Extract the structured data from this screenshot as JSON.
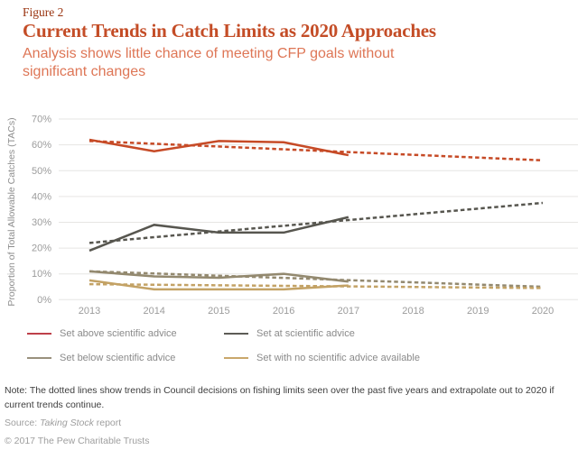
{
  "figure": {
    "label": "Figure 2",
    "title": "Current Trends in Catch Limits as 2020 Approaches",
    "subtitle": "Analysis shows little chance of meeting CFP goals without significant changes"
  },
  "chart_data": {
    "type": "line",
    "title": "Current Trends in Catch Limits as 2020 Approaches",
    "xlabel": "",
    "ylabel": "Proportion of Total Allowable Catches (TACs)",
    "x_ticks": [
      2013,
      2014,
      2015,
      2016,
      2017,
      2018,
      2019,
      2020
    ],
    "y_ticks": [
      "0%",
      "10%",
      "20%",
      "30%",
      "40%",
      "50%",
      "60%",
      "70%"
    ],
    "ylim": [
      0,
      70
    ],
    "grid": true,
    "legend_position": "bottom",
    "series": [
      {
        "name": "Set above scientific advice",
        "style": "solid",
        "color": "#C64A26",
        "x": [
          2013,
          2014,
          2015,
          2016,
          2017
        ],
        "values": [
          62,
          57.5,
          61.5,
          61,
          56
        ]
      },
      {
        "name": "Set above scientific advice (trend)",
        "style": "dashed",
        "color": "#C64A26",
        "x": [
          2013,
          2020
        ],
        "values": [
          61.5,
          54
        ]
      },
      {
        "name": "Set at scientific advice",
        "style": "solid",
        "color": "#57564F",
        "x": [
          2013,
          2014,
          2015,
          2016,
          2017
        ],
        "values": [
          19,
          29,
          26,
          26,
          32
        ]
      },
      {
        "name": "Set at scientific advice (trend)",
        "style": "dashed",
        "color": "#57564F",
        "x": [
          2013,
          2020
        ],
        "values": [
          22,
          37.5
        ]
      },
      {
        "name": "Set below scientific advice",
        "style": "solid",
        "color": "#93896F",
        "x": [
          2013,
          2014,
          2015,
          2016,
          2017
        ],
        "values": [
          11,
          9,
          8.5,
          10,
          7
        ]
      },
      {
        "name": "Set below scientific advice (trend)",
        "style": "dashed",
        "color": "#93896F",
        "x": [
          2013,
          2020
        ],
        "values": [
          11,
          5
        ]
      },
      {
        "name": "Set with no scientific advice available",
        "style": "solid",
        "color": "#C3A265",
        "x": [
          2013,
          2014,
          2015,
          2016,
          2017
        ],
        "values": [
          7.5,
          4,
          4,
          4,
          5.5
        ]
      },
      {
        "name": "Set with no scientific advice available (trend)",
        "style": "dashed",
        "color": "#C3A265",
        "x": [
          2013,
          2020
        ],
        "values": [
          6,
          4.5
        ]
      }
    ],
    "legend": [
      {
        "label": "Set above scientific advice",
        "color": "#BE404A"
      },
      {
        "label": "Set at scientific advice",
        "color": "#5D5C56"
      },
      {
        "label": "Set below scientific advice",
        "color": "#99907D"
      },
      {
        "label": "Set with no scientific advice available",
        "color": "#C9A76B"
      }
    ],
    "grid_color": "#E6E5E3",
    "tick_label_color": "#9C9C9C",
    "axis_title_color": "#8E8E8E"
  },
  "note": {
    "text": "Note: The dotted lines show trends in Council decisions on fishing limits seen over the past five years and extrapolate out to 2020 if current trends continue."
  },
  "source": {
    "prefix": "Source: ",
    "report": "Taking Stock",
    "suffix": " report"
  },
  "copyright": "© 2017 The Pew Charitable Trusts"
}
